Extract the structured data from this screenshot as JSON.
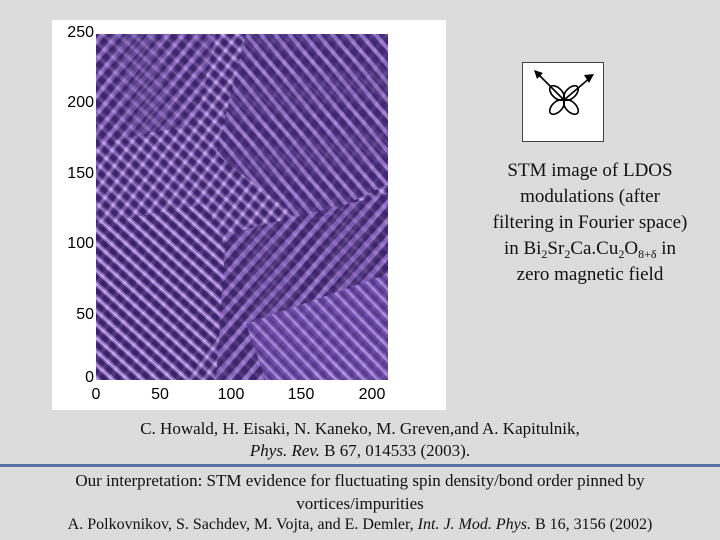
{
  "figure": {
    "y_ticks": [
      "250",
      "200",
      "150",
      "100",
      "50",
      "0"
    ],
    "x_ticks": [
      "0",
      "50",
      "100",
      "150",
      "200"
    ],
    "colors": {
      "dark": "#2a1650",
      "mid": "#7a55b8",
      "light": "#e6d9f7",
      "frame": "#ffffff"
    }
  },
  "caption": {
    "line1": "STM image of LDOS",
    "line2": "modulations (after",
    "line3": "filtering in Fourier space)",
    "line4_pre": "in Bi",
    "sub1": "2",
    "sr": "Sr",
    "sub2": "2",
    "cacu": "Ca.Cu",
    "sub3": "2",
    "o": "O",
    "sub4": "8+δ",
    "line4_post": " in",
    "line5": "zero magnetic field"
  },
  "reference1": {
    "authors": "C. Howald, H. Eisaki, N. Kaneko, M. Greven,and A. Kapitulnik,",
    "journal": "Phys. Rev.",
    "citation": " B 67, 014533 (2003)."
  },
  "interpretation": "Our interpretation: STM evidence for fluctuating spin density/bond order pinned by vortices/impurities",
  "reference2": {
    "authors": "A. Polkovnikov, S. Sachdev, M. Vojta, and E. Demler, ",
    "journal": "Int. J. Mod. Phys.",
    "citation": " B 16, 3156 (2002)"
  },
  "inset": {
    "icon": "d-orbital-with-arrows-icon"
  }
}
